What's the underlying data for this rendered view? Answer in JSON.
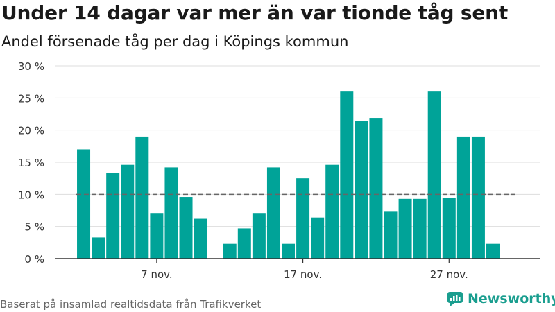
{
  "title": "Under 14 dagar var mer än var tionde tåg sent",
  "subtitle": "Andel försenade tåg per dag i Köpings kommun",
  "source": "Baserat på insamlad realtidsdata från Trafikverket",
  "brand": {
    "name": "Newsworthy",
    "icon": "newsworthy-logo-icon",
    "color": "#1a9e8f"
  },
  "colors": {
    "bar": "#00a398",
    "reference_line": "#666666",
    "grid": "#dddddd",
    "axis": "#333333"
  },
  "chart_data": {
    "type": "bar",
    "x": [
      "2019-11-02",
      "2019-11-03",
      "2019-11-04",
      "2019-11-05",
      "2019-11-06",
      "2019-11-07",
      "2019-11-08",
      "2019-11-09",
      "2019-11-10",
      "2019-11-11",
      "2019-11-12",
      "2019-11-13",
      "2019-11-14",
      "2019-11-15",
      "2019-11-16",
      "2019-11-17",
      "2019-11-18",
      "2019-11-19",
      "2019-11-20",
      "2019-11-21",
      "2019-11-22",
      "2019-11-23",
      "2019-11-24",
      "2019-11-25",
      "2019-11-26",
      "2019-11-27",
      "2019-11-28",
      "2019-11-29",
      "2019-11-30"
    ],
    "values": [
      17.0,
      3.3,
      13.3,
      14.6,
      19.0,
      7.1,
      14.2,
      9.6,
      6.2,
      null,
      2.3,
      4.7,
      7.1,
      14.2,
      2.3,
      12.5,
      6.4,
      14.6,
      26.1,
      21.4,
      21.9,
      7.3,
      9.3,
      9.3,
      26.1,
      9.4,
      19.0,
      19.0,
      2.3
    ],
    "ylim": [
      0,
      30
    ],
    "yticks": [
      0,
      5,
      10,
      15,
      20,
      25,
      30
    ],
    "ytick_labels": [
      "0 %",
      "5 %",
      "10 %",
      "15 %",
      "20 %",
      "25 %",
      "30 %"
    ],
    "xtick_labels": [
      {
        "x": "2019-11-07",
        "label": "7 nov."
      },
      {
        "x": "2019-11-17",
        "label": "17 nov."
      },
      {
        "x": "2019-11-27",
        "label": "27 nov."
      }
    ],
    "reference_line": {
      "y": 10,
      "style": "dashed"
    },
    "grid": "horizontal",
    "xlabel": "",
    "ylabel": ""
  }
}
